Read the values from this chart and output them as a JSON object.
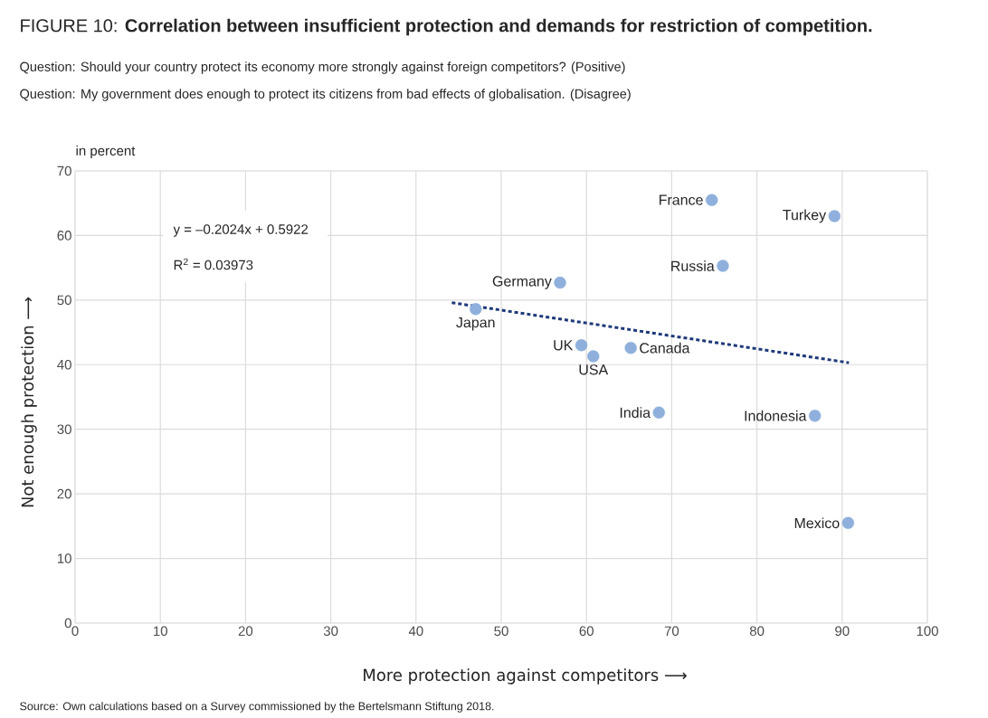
{
  "chart_data": {
    "type": "scatter",
    "title": "FIGURE 10: **Correlation between insufficient protection and demands for restriction of competition.**",
    "subtitle": "Question: Should your country protect its economy more strongly against foreign competitors? (Positive)",
    "xlabel": "More protection against competitors ⟶",
    "ylabel": "Not enough protection ⟶",
    "xlim": [
      0,
      100
    ],
    "ylim": [
      0,
      70
    ],
    "xticks": [
      0,
      10,
      20,
      30,
      40,
      50,
      60,
      70,
      80,
      90,
      100
    ],
    "yticks": [
      0,
      10,
      20,
      30,
      40,
      50,
      60,
      70
    ],
    "grid": true,
    "series": [
      {
        "marker": "circle",
        "color": "#8fb0dc",
        "x": [
          74.7,
          89.1,
          76.0,
          56.9,
          47.0,
          59.4,
          60.8,
          65.2,
          68.5,
          86.8,
          90.7
        ],
        "values": [
          65.5,
          63.0,
          55.3,
          52.7,
          48.6,
          43.0,
          41.3,
          42.6,
          32.6,
          32.1,
          15.5
        ]
      },
      {
        "type": "line",
        "color": "#1f3a7a",
        "line_style": "dotted",
        "x": [
          44.2,
          90.8
        ],
        "values": [
          49.6,
          40.3
        ]
      }
    ],
    "annotations": [
      "Question: My government does enough to protect its citizens from bad effects of globalisation. (Disagree)",
      "in percent",
      "y = –0.2024x + 0.5922",
      "R$^{2}$ = 0.03973",
      "Source: Own calculations based on a Survey commissioned by the Bertelsmann Stiftung 2018.",
      {
        "text": "France",
        "x": 74.7,
        "y": 65.5
      },
      {
        "text": "Turkey",
        "x": 89.1,
        "y": 63.0
      },
      {
        "text": "Russia",
        "x": 76.0,
        "y": 55.3
      },
      {
        "text": "Germany",
        "x": 56.9,
        "y": 52.7
      },
      {
        "text": "Japan",
        "x": 47.0,
        "y": 48.6
      },
      {
        "text": "UK",
        "x": 59.4,
        "y": 43.0
      },
      {
        "text": "USA",
        "x": 60.8,
        "y": 41.3
      },
      {
        "text": "Canada",
        "x": 65.2,
        "y": 42.6
      },
      {
        "text": "India",
        "x": 68.5,
        "y": 32.6
      },
      {
        "text": "Indonesia",
        "x": 86.8,
        "y": 32.1
      },
      {
        "text": "Mexico",
        "x": 90.7,
        "y": 15.5
      }
    ]
  }
}
